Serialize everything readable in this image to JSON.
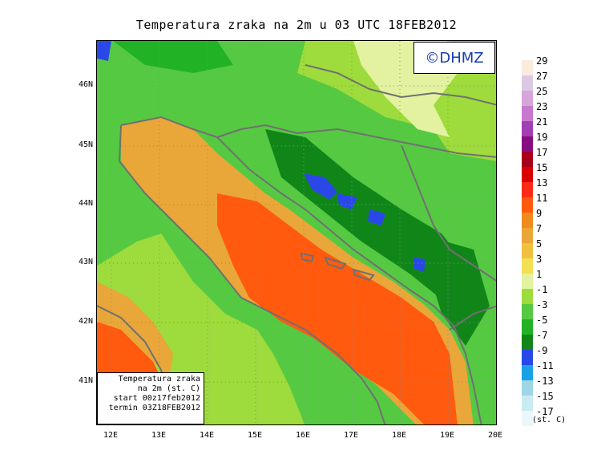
{
  "title": "Temperatura zraka na 2m u 03 UTC 18FEB2012",
  "logo": "©DHMZ",
  "info_box": {
    "line1": "Temperatura zraka",
    "line2": "na 2m (st. C)",
    "line3": "start 00z17feb2012",
    "line4": "termin 03Z18FEB2012"
  },
  "lat_labels": [
    "46N",
    "45N",
    "44N",
    "43N",
    "42N",
    "41N"
  ],
  "lon_labels": [
    "12E",
    "13E",
    "14E",
    "15E",
    "16E",
    "17E",
    "18E",
    "19E",
    "20E"
  ],
  "legend": {
    "units": "(st. C)",
    "labels": [
      "29",
      "27",
      "25",
      "23",
      "21",
      "19",
      "17",
      "15",
      "13",
      "11",
      "9",
      "7",
      "5",
      "3",
      "1",
      "-1",
      "-3",
      "-5",
      "-7",
      "-9",
      "-11",
      "-13",
      "-15",
      "-17"
    ],
    "colors": [
      "#fbeade",
      "#ddc9e3",
      "#d5a7d9",
      "#c778cf",
      "#a13fb3",
      "#880d80",
      "#a8001a",
      "#d90000",
      "#ff2a15",
      "#ff5a0e",
      "#f08a1c",
      "#e9a639",
      "#efc13e",
      "#f3de54",
      "#e3f2a0",
      "#9edb3c",
      "#56c943",
      "#22b226",
      "#118618",
      "#2a48e8",
      "#1aa2e7",
      "#9fd6e6",
      "#c9ecf2",
      "#eaf8fb"
    ]
  },
  "colors": {
    "grid": "#8a8a8a",
    "coast": "#707070",
    "sea_warm": "#e9a639",
    "sea_hot": "#ff5a0e",
    "land_green": "#56c943",
    "land_dark": "#118618",
    "land_light": "#9edb3c",
    "land_cold": "#2a48e8"
  }
}
